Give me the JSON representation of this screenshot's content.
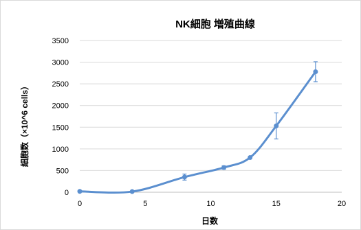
{
  "chart_data": {
    "type": "line",
    "title": "NK細胞 増殖曲線",
    "xlabel": "日数",
    "ylabel": "細胞数（×10^6 cells）",
    "xlim": [
      0,
      20
    ],
    "ylim": [
      0,
      3500
    ],
    "xticks": [
      0,
      5,
      10,
      15,
      20
    ],
    "yticks": [
      0,
      500,
      1000,
      1500,
      2000,
      2500,
      3000,
      3500
    ],
    "grid": true,
    "smooth": true,
    "series": [
      {
        "color": "#5b8fcf",
        "x": [
          0,
          4,
          8,
          11,
          13,
          15,
          18
        ],
        "y": [
          20,
          15,
          350,
          570,
          800,
          1530,
          2780
        ],
        "err": [
          0,
          0,
          70,
          40,
          0,
          300,
          230
        ]
      }
    ]
  }
}
